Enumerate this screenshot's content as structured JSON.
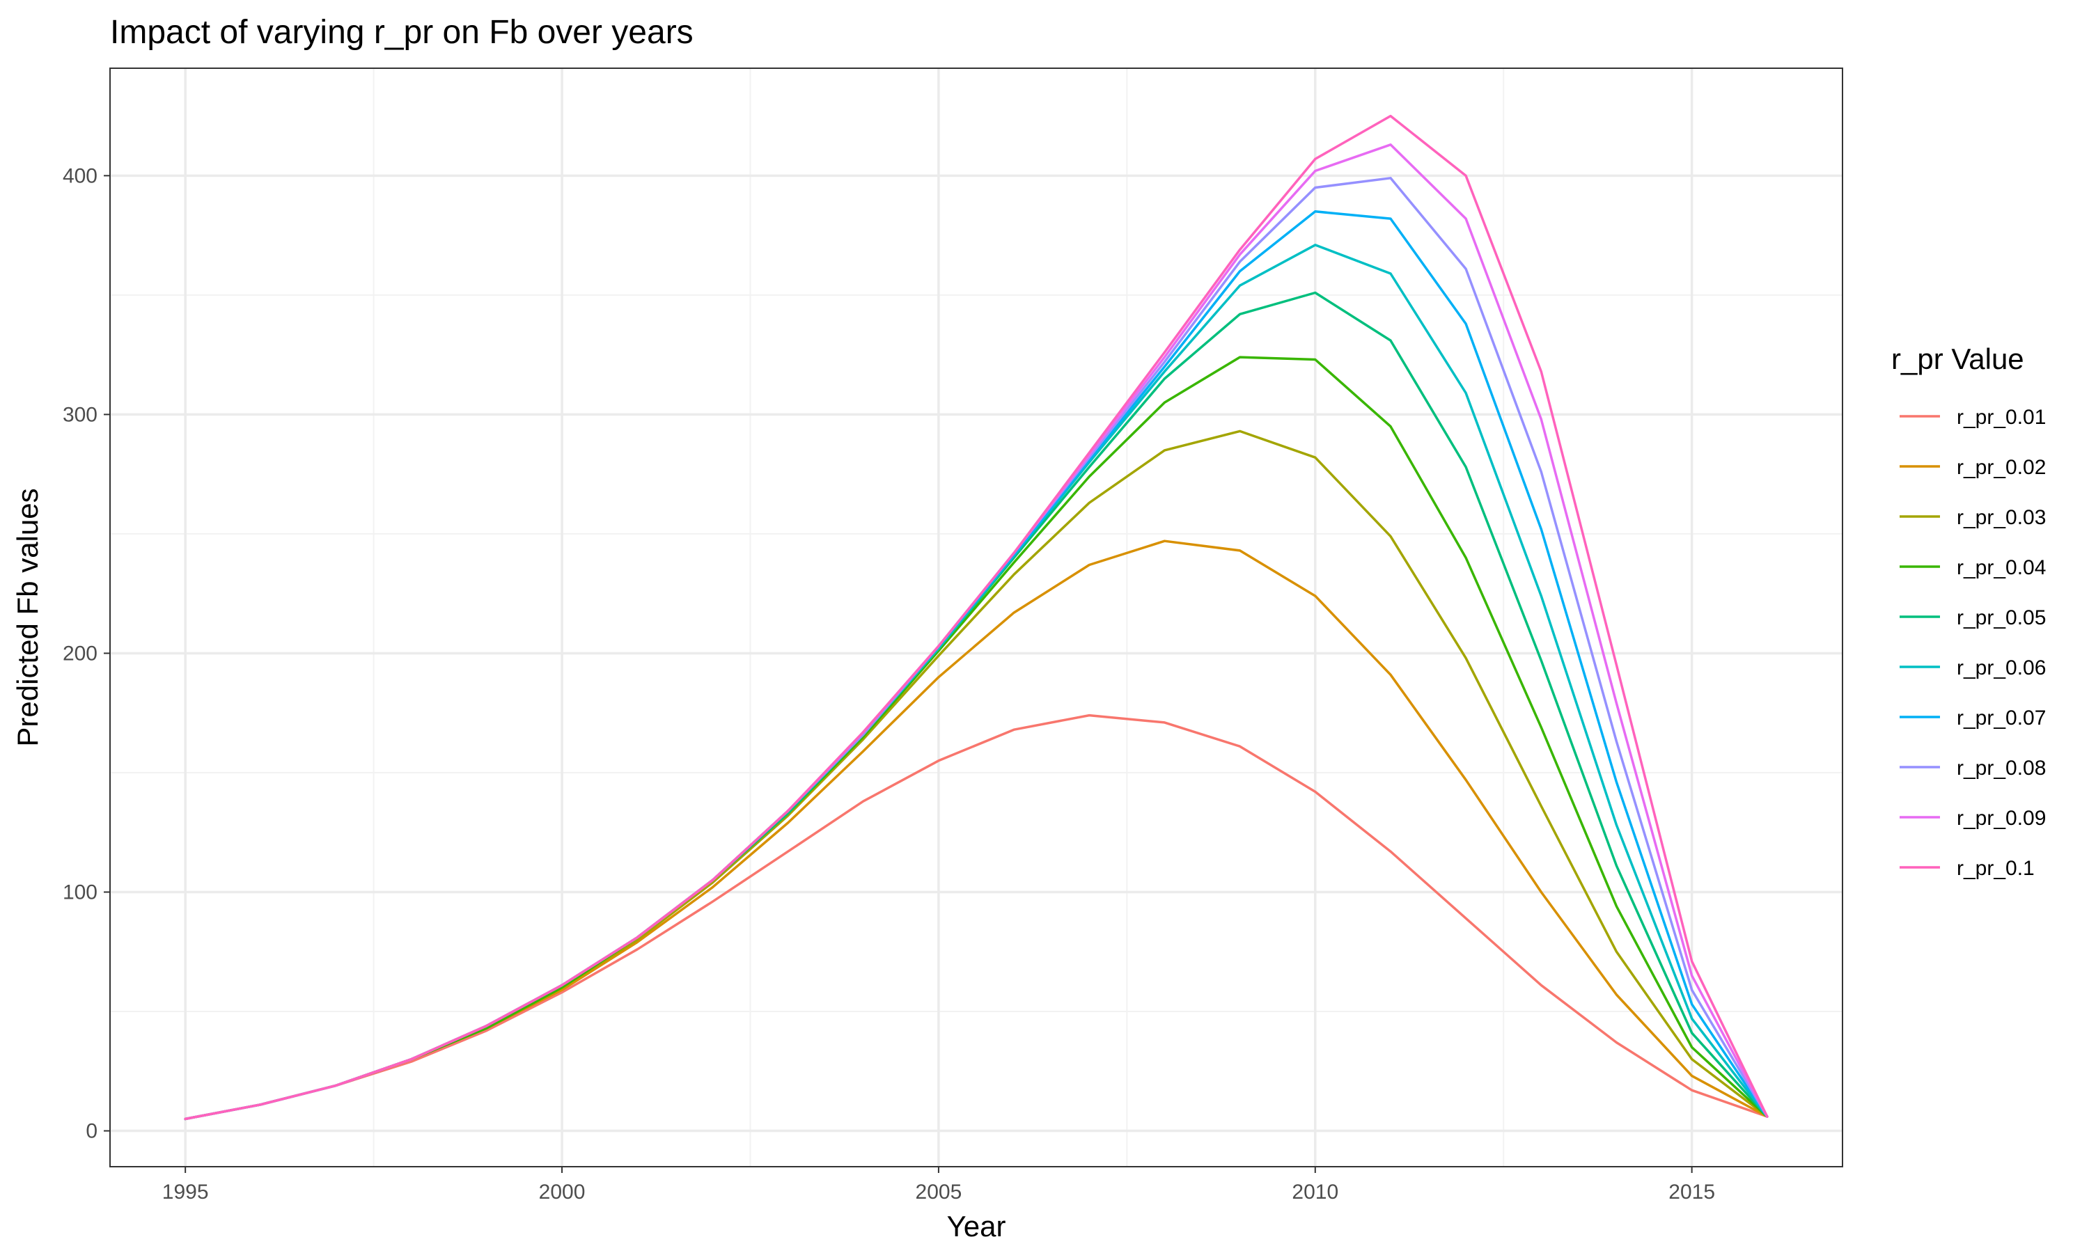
{
  "chart_data": {
    "type": "line",
    "title": "Impact of varying r_pr on Fb over years",
    "xlabel": "Year",
    "ylabel": "Predicted Fb values",
    "xlim": [
      1994,
      2017
    ],
    "ylim": [
      -15,
      445
    ],
    "x_ticks": [
      1995,
      2000,
      2005,
      2010,
      2015
    ],
    "y_ticks": [
      0,
      100,
      200,
      300,
      400
    ],
    "grid": true,
    "legend": {
      "title": "r_pr Value",
      "position": "right"
    },
    "x": [
      1995,
      1996,
      1997,
      1998,
      1999,
      2000,
      2001,
      2002,
      2003,
      2004,
      2005,
      2006,
      2007,
      2008,
      2009,
      2010,
      2011,
      2012,
      2013,
      2014,
      2015,
      2016
    ],
    "series": [
      {
        "name": "r_pr_0.01",
        "color": "#F8766D",
        "values": [
          5,
          11,
          19,
          29,
          42,
          58,
          76,
          96,
          117,
          138,
          155,
          168,
          174,
          171,
          161,
          142,
          117,
          89,
          61,
          37,
          17,
          6
        ]
      },
      {
        "name": "r_pr_0.02",
        "color": "#D89000",
        "values": [
          5,
          11,
          19,
          30,
          43,
          59,
          79,
          102,
          129,
          159,
          190,
          217,
          237,
          247,
          243,
          224,
          191,
          147,
          100,
          57,
          23,
          6
        ]
      },
      {
        "name": "r_pr_0.03",
        "color": "#A3A500",
        "values": [
          5,
          11,
          19,
          30,
          43,
          60,
          80,
          104,
          132,
          164,
          199,
          233,
          263,
          285,
          293,
          282,
          249,
          198,
          136,
          75,
          30,
          6
        ]
      },
      {
        "name": "r_pr_0.04",
        "color": "#39B600",
        "values": [
          5,
          11,
          19,
          30,
          43,
          60,
          81,
          105,
          133,
          165,
          201,
          238,
          274,
          305,
          324,
          323,
          295,
          240,
          169,
          94,
          35,
          6
        ]
      },
      {
        "name": "r_pr_0.05",
        "color": "#00BF7D",
        "values": [
          5,
          11,
          19,
          30,
          44,
          61,
          81,
          105,
          133,
          166,
          202,
          240,
          278,
          315,
          342,
          351,
          331,
          278,
          197,
          111,
          41,
          6
        ]
      },
      {
        "name": "r_pr_0.06",
        "color": "#00BFC4",
        "values": [
          5,
          11,
          19,
          30,
          44,
          61,
          81,
          105,
          134,
          166,
          202,
          241,
          280,
          318,
          354,
          371,
          359,
          309,
          224,
          128,
          47,
          6
        ]
      },
      {
        "name": "r_pr_0.07",
        "color": "#00B0F6",
        "values": [
          5,
          11,
          19,
          30,
          44,
          61,
          81,
          105,
          134,
          166,
          203,
          241,
          281,
          320,
          360,
          385,
          382,
          338,
          252,
          146,
          53,
          6
        ]
      },
      {
        "name": "r_pr_0.08",
        "color": "#9590FF",
        "values": [
          5,
          11,
          19,
          30,
          44,
          61,
          81,
          105,
          134,
          166,
          203,
          242,
          282,
          322,
          364,
          395,
          399,
          361,
          276,
          163,
          59,
          6
        ]
      },
      {
        "name": "r_pr_0.09",
        "color": "#E76BF3",
        "values": [
          5,
          11,
          19,
          30,
          44,
          61,
          81,
          105,
          134,
          167,
          203,
          242,
          283,
          324,
          367,
          402,
          413,
          382,
          298,
          179,
          65,
          6
        ]
      },
      {
        "name": "r_pr_0.1",
        "color": "#FF62BC",
        "values": [
          5,
          11,
          19,
          30,
          44,
          61,
          81,
          105,
          134,
          167,
          203,
          242,
          284,
          326,
          369,
          407,
          425,
          400,
          318,
          195,
          71,
          6
        ]
      }
    ]
  }
}
